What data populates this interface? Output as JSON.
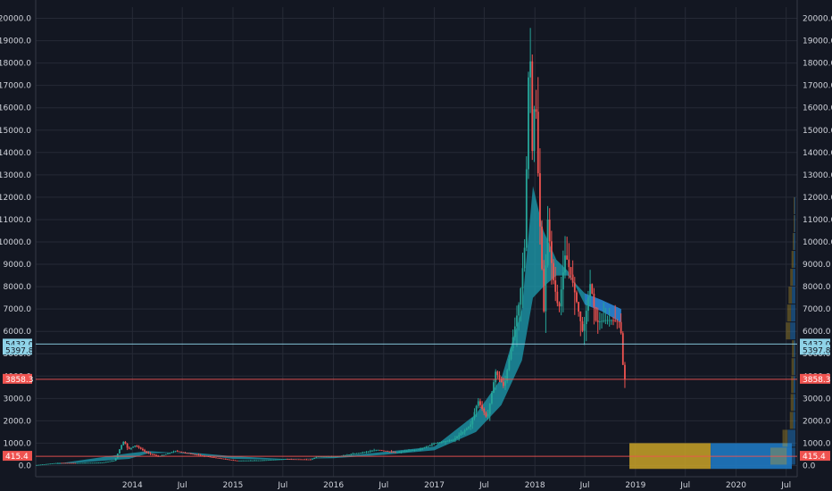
{
  "chart_data": {
    "type": "line",
    "title": "",
    "xlabel": "",
    "ylabel": "",
    "ylim": [
      -500,
      20500
    ],
    "grid": true,
    "y_ticks": [
      0,
      1000,
      2000,
      3000,
      4000,
      5000,
      6000,
      7000,
      8000,
      9000,
      10000,
      11000,
      12000,
      13000,
      14000,
      15000,
      16000,
      17000,
      18000,
      19000,
      20000
    ],
    "y_tick_labels": [
      "0.0",
      "1000.0",
      "2000.0",
      "3000.0",
      "4000.0",
      "5000.0",
      "6000.0",
      "7000.0",
      "8000.0",
      "9000.0",
      "10000.0",
      "11000.0",
      "12000.0",
      "13000.0",
      "14000.0",
      "15000.0",
      "16000.0",
      "17000.0",
      "18000.0",
      "19000.0",
      "20000.0"
    ],
    "x_ticks": [
      {
        "label": "2014",
        "date": "2014-01-01"
      },
      {
        "label": "Jul",
        "date": "2014-07-01"
      },
      {
        "label": "2015",
        "date": "2015-01-01"
      },
      {
        "label": "Jul",
        "date": "2015-07-01"
      },
      {
        "label": "2016",
        "date": "2016-01-01"
      },
      {
        "label": "Jul",
        "date": "2016-07-01"
      },
      {
        "label": "2017",
        "date": "2017-01-01"
      },
      {
        "label": "Jul",
        "date": "2017-07-01"
      },
      {
        "label": "2018",
        "date": "2018-01-01"
      },
      {
        "label": "Jul",
        "date": "2018-07-01"
      },
      {
        "label": "2019",
        "date": "2019-01-01"
      },
      {
        "label": "Jul",
        "date": "2019-07-01"
      },
      {
        "label": "2020",
        "date": "2020-01-01"
      },
      {
        "label": "Jul",
        "date": "2020-07-01"
      }
    ],
    "x_range": [
      "2013-01-15",
      "2020-08-10"
    ],
    "price_series": [
      {
        "date": "2013-01-15",
        "close": 15
      },
      {
        "date": "2013-04-10",
        "close": 120
      },
      {
        "date": "2013-06-15",
        "close": 110
      },
      {
        "date": "2013-09-15",
        "close": 130
      },
      {
        "date": "2013-11-01",
        "close": 220
      },
      {
        "date": "2013-11-25",
        "close": 900
      },
      {
        "date": "2013-12-05",
        "close": 1100
      },
      {
        "date": "2013-12-20",
        "close": 720
      },
      {
        "date": "2014-01-15",
        "close": 900
      },
      {
        "date": "2014-02-25",
        "close": 580
      },
      {
        "date": "2014-04-10",
        "close": 400
      },
      {
        "date": "2014-06-10",
        "close": 650
      },
      {
        "date": "2014-08-15",
        "close": 500
      },
      {
        "date": "2014-10-15",
        "close": 380
      },
      {
        "date": "2015-01-15",
        "close": 220
      },
      {
        "date": "2015-04-15",
        "close": 230
      },
      {
        "date": "2015-07-15",
        "close": 290
      },
      {
        "date": "2015-10-15",
        "close": 270
      },
      {
        "date": "2015-11-05",
        "close": 400
      },
      {
        "date": "2016-01-15",
        "close": 400
      },
      {
        "date": "2016-06-15",
        "close": 700
      },
      {
        "date": "2016-08-15",
        "close": 580
      },
      {
        "date": "2016-11-15",
        "close": 730
      },
      {
        "date": "2017-01-05",
        "close": 1000
      },
      {
        "date": "2017-03-15",
        "close": 1150
      },
      {
        "date": "2017-05-15",
        "close": 1800
      },
      {
        "date": "2017-06-12",
        "close": 2900
      },
      {
        "date": "2017-07-15",
        "close": 2100
      },
      {
        "date": "2017-08-15",
        "close": 4200
      },
      {
        "date": "2017-09-15",
        "close": 3500
      },
      {
        "date": "2017-10-15",
        "close": 5600
      },
      {
        "date": "2017-11-10",
        "close": 7400
      },
      {
        "date": "2017-11-30",
        "close": 10000
      },
      {
        "date": "2017-12-10",
        "close": 16500
      },
      {
        "date": "2017-12-17",
        "close": 19500
      },
      {
        "date": "2017-12-25",
        "close": 13800
      },
      {
        "date": "2018-01-06",
        "close": 17000
      },
      {
        "date": "2018-01-20",
        "close": 11500
      },
      {
        "date": "2018-02-06",
        "close": 6900
      },
      {
        "date": "2018-02-20",
        "close": 11000
      },
      {
        "date": "2018-03-10",
        "close": 8500
      },
      {
        "date": "2018-04-01",
        "close": 6900
      },
      {
        "date": "2018-04-25",
        "close": 9500
      },
      {
        "date": "2018-05-20",
        "close": 8300
      },
      {
        "date": "2018-06-28",
        "close": 5900
      },
      {
        "date": "2018-07-25",
        "close": 8200
      },
      {
        "date": "2018-08-15",
        "close": 6400
      },
      {
        "date": "2018-09-15",
        "close": 6500
      },
      {
        "date": "2018-10-15",
        "close": 6500
      },
      {
        "date": "2018-11-10",
        "close": 6400
      },
      {
        "date": "2018-11-15",
        "close": 5600
      },
      {
        "date": "2018-11-20",
        "close": 4500
      },
      {
        "date": "2018-11-24",
        "close": 3858.3
      }
    ],
    "ribbon_series": [
      {
        "date": "2013-04-01",
        "fast": 80,
        "slow": 60
      },
      {
        "date": "2013-12-20",
        "fast": 550,
        "slow": 300
      },
      {
        "date": "2014-03-01",
        "fast": 650,
        "slow": 550
      },
      {
        "date": "2014-08-01",
        "fast": 520,
        "slow": 580
      },
      {
        "date": "2015-01-01",
        "fast": 300,
        "slow": 420
      },
      {
        "date": "2015-07-01",
        "fast": 260,
        "slow": 300
      },
      {
        "date": "2016-01-01",
        "fast": 390,
        "slow": 330
      },
      {
        "date": "2016-07-01",
        "fast": 610,
        "slow": 480
      },
      {
        "date": "2017-01-01",
        "fast": 850,
        "slow": 680
      },
      {
        "date": "2017-06-01",
        "fast": 2300,
        "slow": 1500
      },
      {
        "date": "2017-09-01",
        "fast": 3900,
        "slow": 2700
      },
      {
        "date": "2017-11-15",
        "fast": 7000,
        "slow": 4700
      },
      {
        "date": "2017-12-25",
        "fast": 12500,
        "slow": 7500
      },
      {
        "date": "2018-02-01",
        "fast": 10500,
        "slow": 8000
      },
      {
        "date": "2018-03-20",
        "fast": 9200,
        "slow": 8500
      },
      {
        "date": "2018-05-01",
        "fast": 8700,
        "slow": 8500
      },
      {
        "date": "2018-07-01",
        "fast": 7200,
        "slow": 7700
      },
      {
        "date": "2018-09-01",
        "fast": 6900,
        "slow": 7400
      },
      {
        "date": "2018-11-10",
        "fast": 6400,
        "slow": 7000
      }
    ],
    "horizontal_levels": [
      {
        "value": 5432.0,
        "label": "5432.0",
        "color": "#8fd3e8"
      },
      {
        "value": 5397.8,
        "label": "5397.8",
        "color": "#8fd3e8"
      },
      {
        "value": 3858.3,
        "label": "3858.3",
        "color": "#ef5350"
      },
      {
        "value": 415.4,
        "label": "415.4",
        "color": "#ef5350"
      }
    ],
    "volume_profile": [
      {
        "low": 0,
        "high": 800,
        "up": 38,
        "down": 20
      },
      {
        "low": 800,
        "high": 1600,
        "up": 12,
        "down": 18
      },
      {
        "low": 1600,
        "high": 2400,
        "up": 8,
        "down": 5
      },
      {
        "low": 2400,
        "high": 3200,
        "up": 7,
        "down": 4
      },
      {
        "low": 3200,
        "high": 4000,
        "up": 6,
        "down": 4
      },
      {
        "low": 4000,
        "high": 4800,
        "up": 6,
        "down": 3
      },
      {
        "low": 4800,
        "high": 5600,
        "up": 5,
        "down": 3
      },
      {
        "low": 5600,
        "high": 6400,
        "up": 10,
        "down": 12
      },
      {
        "low": 6400,
        "high": 7200,
        "up": 9,
        "down": 10
      },
      {
        "low": 7200,
        "high": 8000,
        "up": 8,
        "down": 8
      },
      {
        "low": 8000,
        "high": 8800,
        "up": 6,
        "down": 6
      },
      {
        "low": 8800,
        "high": 9600,
        "up": 5,
        "down": 4
      },
      {
        "low": 9600,
        "high": 10400,
        "up": 3,
        "down": 3
      },
      {
        "low": 10400,
        "high": 11200,
        "up": 2,
        "down": 2
      },
      {
        "low": 11200,
        "high": 12000,
        "up": 2,
        "down": 2
      }
    ],
    "colors": {
      "background": "#131722",
      "grid": "#262a36",
      "up": "#26a69a",
      "down": "#ef5350",
      "ribbon_fill": "#1e9fb2",
      "ribbon_bear": "#2979c9",
      "volume_up": "#c9a227",
      "volume_down": "#1f78c1",
      "axis_text": "#d1d4dc"
    }
  }
}
